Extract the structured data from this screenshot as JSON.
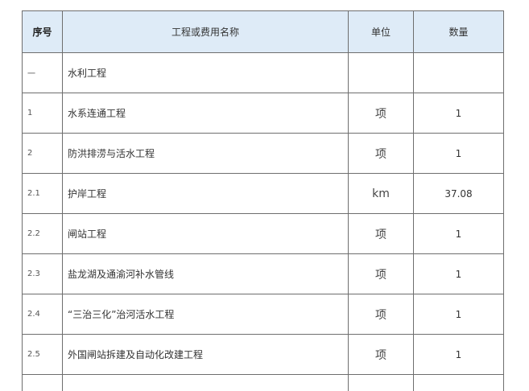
{
  "table": {
    "header": [
      "序号",
      "工程或费用名称",
      "单位",
      "数量"
    ],
    "rows": [
      [
        "一",
        "水利工程"
      ],
      [
        "1",
        "水系连通工程",
        "项",
        "1"
      ],
      [
        "2",
        "防洪排涝与活水工程",
        "项",
        "1"
      ],
      [
        "2.1",
        "护岸工程",
        "km",
        "37.08"
      ],
      [
        "2.2",
        "闸站工程",
        "项",
        "1"
      ],
      [
        "2.3",
        "盐龙湖及通渝河补水管线",
        "项",
        "1"
      ],
      [
        "2.4",
        "“三治三化”治河活水工程",
        "项",
        "1"
      ],
      [
        "2.5",
        "外国闸站拆建及自动化改建工程",
        "项",
        "1"
      ]
    ]
  }
}
